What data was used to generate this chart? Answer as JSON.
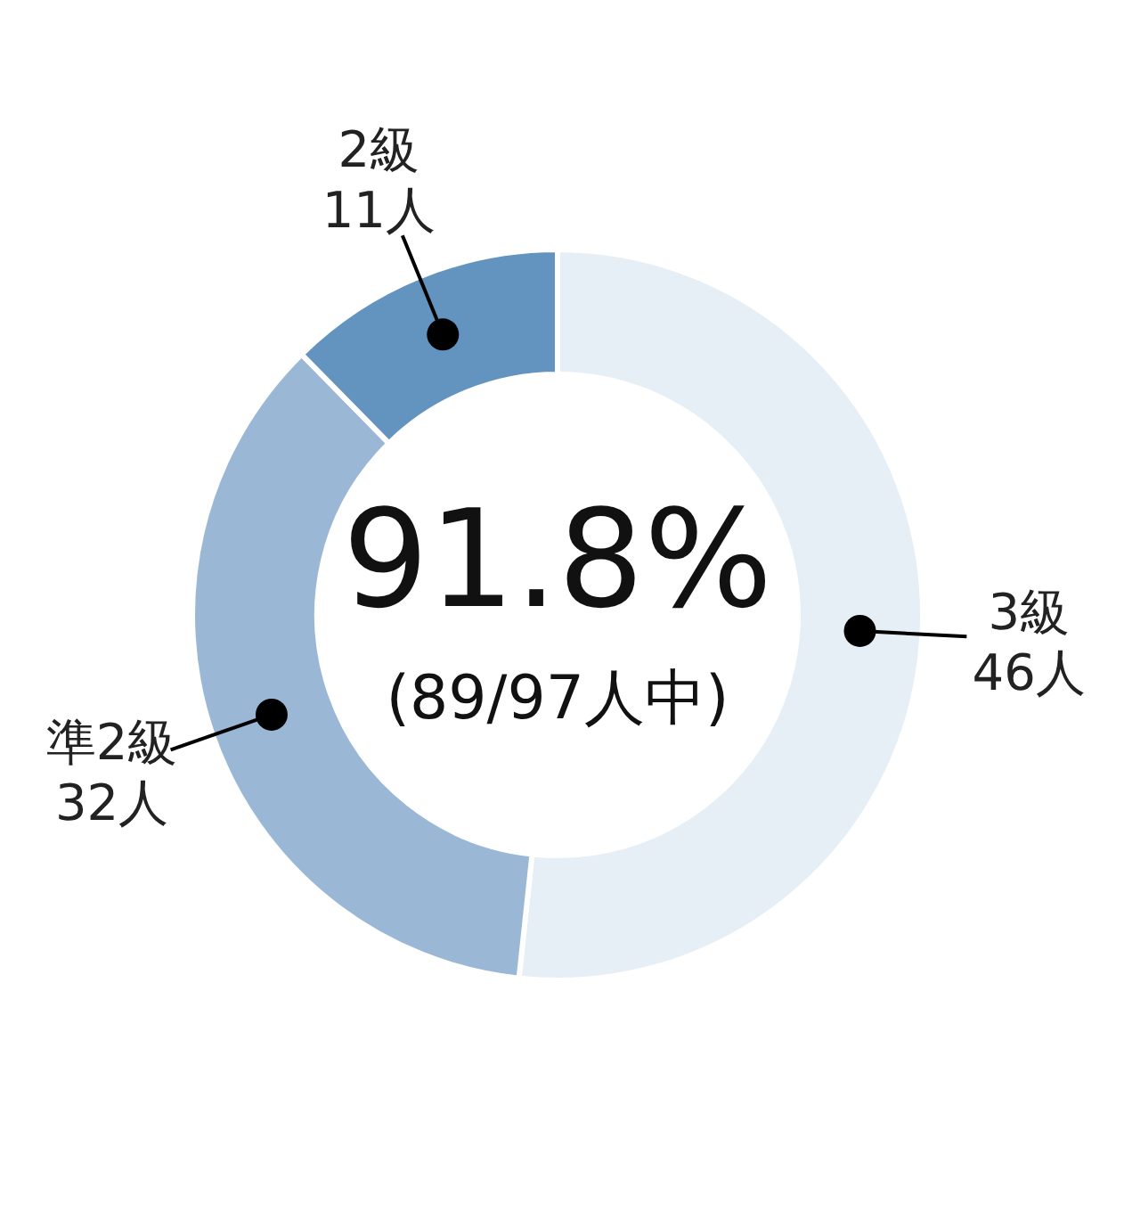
{
  "chart_data": {
    "type": "donut",
    "categories": [
      "3級",
      "準2級",
      "2級"
    ],
    "values": [
      46,
      32,
      11
    ],
    "value_labels": [
      "46人",
      "32人",
      "11人"
    ],
    "colors": [
      "#e6eef6",
      "#9ab8d6",
      "#6394c0"
    ],
    "annotations": [
      "91.8%",
      "(89/97人中)"
    ]
  }
}
